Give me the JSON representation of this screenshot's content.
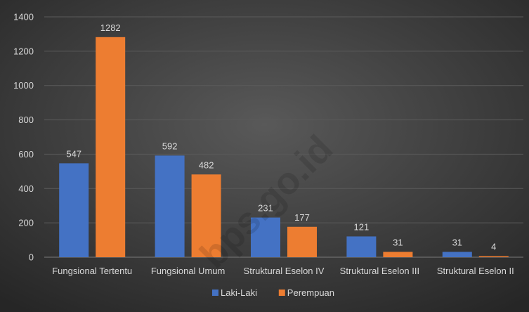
{
  "chart_data": {
    "type": "bar",
    "categories": [
      "Fungsional Tertentu",
      "Fungsional Umum",
      "Struktural Eselon IV",
      "Struktural Eselon III",
      "Struktural Eselon II"
    ],
    "series": [
      {
        "name": "Laki-Laki",
        "color": "#4472c4",
        "values": [
          547,
          592,
          231,
          121,
          31
        ]
      },
      {
        "name": "Perempuan",
        "color": "#ed7d31",
        "values": [
          1282,
          482,
          177,
          31,
          4
        ]
      }
    ],
    "yticks": [
      0,
      200,
      400,
      600,
      800,
      1000,
      1200,
      1400
    ],
    "ylim": [
      0,
      1400
    ],
    "grid": true,
    "legend_position": "bottom",
    "data_labels": true,
    "watermark": "bps.go.id",
    "background_color": "#3a3a3a",
    "gridline_color": "#5a5a5a",
    "text_color": "#d9d9d9"
  }
}
